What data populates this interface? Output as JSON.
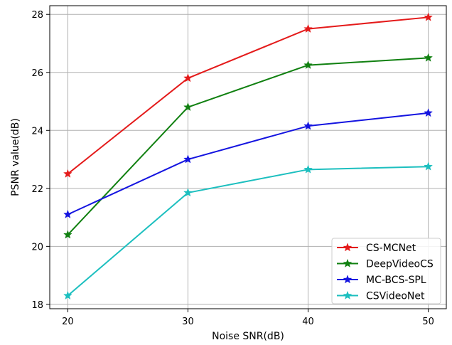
{
  "chart_data": {
    "type": "line",
    "title": "",
    "xlabel": "Noise SNR(dB)",
    "ylabel": "PSNR value(dB)",
    "x": [
      20,
      30,
      40,
      50
    ],
    "xlim": [
      18.5,
      51.5
    ],
    "ylim": [
      17.85,
      28.3
    ],
    "xticks": [
      "20",
      "30",
      "40",
      "50"
    ],
    "yticks": [
      "18",
      "20",
      "22",
      "24",
      "26",
      "28"
    ],
    "grid": true,
    "legend_position": "lower-right",
    "marker": "star",
    "series": [
      {
        "name": "CS-MCNet",
        "color": "#e41a1a",
        "values": [
          22.5,
          25.8,
          27.5,
          27.9
        ]
      },
      {
        "name": "DeepVideoCS",
        "color": "#108010",
        "values": [
          20.4,
          24.8,
          26.25,
          26.5
        ]
      },
      {
        "name": "MC-BCS-SPL",
        "color": "#1414e0",
        "values": [
          21.1,
          23.0,
          24.15,
          24.6
        ]
      },
      {
        "name": "CSVideoNet",
        "color": "#1cbfbf",
        "values": [
          18.3,
          21.85,
          22.65,
          22.75
        ]
      }
    ]
  }
}
